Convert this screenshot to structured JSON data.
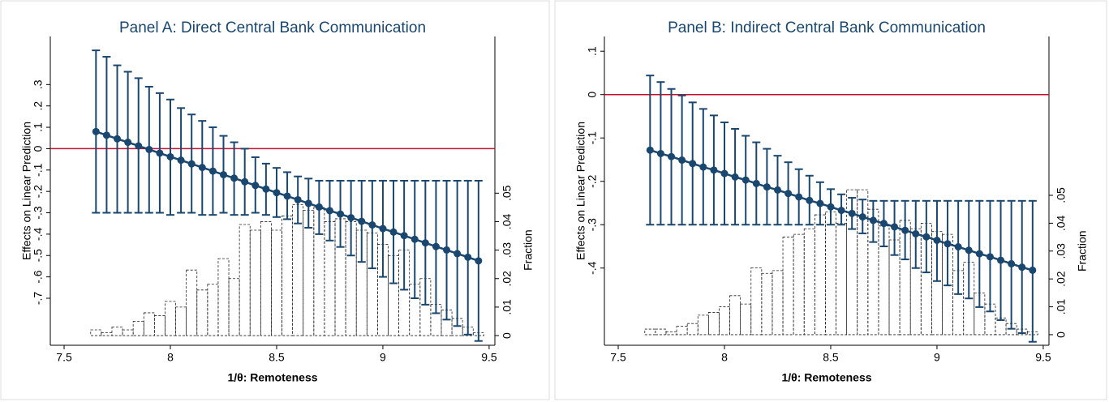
{
  "chart_data": [
    {
      "type": "coefplot",
      "title": "Panel A: Direct Central Bank Communication",
      "xlabel": "1/θ: Remoteness",
      "ylabel": "Effects on Linear Prediction",
      "y2label": "Fraction",
      "color": "#1a476f",
      "refline": 0,
      "refline_color": "#c8102e",
      "hist_color": "#222222",
      "xlim": [
        7.435,
        9.527
      ],
      "xticks": [
        7.5,
        8,
        8.5,
        9,
        9.5
      ],
      "ylim": [
        -0.92,
        0.525
      ],
      "yticks": [
        {
          "value": 0.3,
          "label": ".3"
        },
        {
          "value": 0.2,
          "label": ".2"
        },
        {
          "value": 0.1,
          "label": ".1"
        },
        0,
        {
          "value": -0.1,
          "label": "-.1"
        },
        {
          "value": -0.2,
          "label": "-.2"
        },
        {
          "value": -0.3,
          "label": "-.3"
        },
        {
          "value": -0.4,
          "label": "-.4"
        },
        {
          "value": -0.5,
          "label": "-.5"
        },
        {
          "value": -0.6,
          "label": "-.6"
        },
        {
          "value": -0.7,
          "label": "-.7"
        }
      ],
      "y2lim": [
        -0.0034,
        0.105
      ],
      "y2ticks": [
        0,
        {
          "value": 0.01,
          "label": ".01"
        },
        {
          "value": 0.02,
          "label": ".02"
        },
        {
          "value": 0.03,
          "label": ".03"
        },
        {
          "value": 0.04,
          "label": ".04"
        },
        {
          "value": 0.05,
          "label": ".05"
        }
      ],
      "x": [
        7.65,
        7.7,
        7.75,
        7.8,
        7.85,
        7.9,
        7.95,
        8,
        8.05,
        8.1,
        8.15,
        8.2,
        8.25,
        8.3,
        8.35,
        8.4,
        8.45,
        8.5,
        8.55,
        8.6,
        8.65,
        8.7,
        8.75,
        8.8,
        8.85,
        8.9,
        8.95,
        9,
        9.05,
        9.1,
        9.15,
        9.2,
        9.25,
        9.3,
        9.35,
        9.4,
        9.45
      ],
      "values": [
        0.08,
        0.063,
        0.046,
        0.03,
        0.013,
        -0.004,
        -0.021,
        -0.038,
        -0.054,
        -0.071,
        -0.088,
        -0.105,
        -0.122,
        -0.138,
        -0.155,
        -0.172,
        -0.189,
        -0.206,
        -0.222,
        -0.239,
        -0.256,
        -0.273,
        -0.29,
        -0.306,
        -0.323,
        -0.34,
        -0.357,
        -0.374,
        -0.39,
        -0.407,
        -0.424,
        -0.441,
        -0.458,
        -0.474,
        -0.491,
        -0.508,
        -0.525
      ],
      "lower": [
        -0.3,
        -0.3,
        -0.3,
        -0.3,
        -0.3,
        -0.3,
        -0.3,
        -0.31,
        -0.3,
        -0.3,
        -0.31,
        -0.31,
        -0.3,
        -0.31,
        -0.31,
        -0.3,
        -0.31,
        -0.32,
        -0.33,
        -0.35,
        -0.37,
        -0.4,
        -0.43,
        -0.46,
        -0.5,
        -0.53,
        -0.56,
        -0.6,
        -0.63,
        -0.66,
        -0.7,
        -0.73,
        -0.77,
        -0.8,
        -0.83,
        -0.87,
        -0.9
      ],
      "upper": [
        0.46,
        0.43,
        0.39,
        0.36,
        0.33,
        0.29,
        0.26,
        0.23,
        0.19,
        0.16,
        0.13,
        0.1,
        0.06,
        0.03,
        0,
        -0.04,
        -0.07,
        -0.09,
        -0.11,
        -0.13,
        -0.14,
        -0.15,
        -0.15,
        -0.15,
        -0.15,
        -0.15,
        -0.15,
        -0.15,
        -0.15,
        -0.15,
        -0.15,
        -0.15,
        -0.15,
        -0.15,
        -0.15,
        -0.15,
        -0.15
      ],
      "bins": [
        7.625,
        7.675,
        7.725,
        7.775,
        7.825,
        7.875,
        7.925,
        7.975,
        8.025,
        8.075,
        8.125,
        8.175,
        8.225,
        8.275,
        8.325,
        8.375,
        8.425,
        8.475,
        8.525,
        8.575,
        8.625,
        8.675,
        8.725,
        8.775,
        8.825,
        8.875,
        8.925,
        8.975,
        9.025,
        9.075,
        9.125,
        9.175,
        9.225,
        9.275,
        9.325,
        9.375,
        9.425,
        9.475
      ],
      "fractions": [
        0.002,
        0.001,
        0.003,
        0.002,
        0.005,
        0.008,
        0.007,
        0.012,
        0.01,
        0.023,
        0.016,
        0.018,
        0.027,
        0.02,
        0.039,
        0.037,
        0.04,
        0.037,
        0.042,
        0.046,
        0.044,
        0.045,
        0.04,
        0.041,
        0.04,
        0.037,
        0.036,
        0.032,
        0.028,
        0.03,
        0.018,
        0.02,
        0.011,
        0.009,
        0.006,
        0.003,
        0.001
      ]
    },
    {
      "type": "coefplot",
      "title": "Panel B: Indirect Central Bank Communication",
      "xlabel": "1/θ: Remoteness",
      "ylabel": "Effects on Linear Prediction",
      "y2label": "Fraction",
      "color": "#1a476f",
      "refline": 0,
      "refline_color": "#c8102e",
      "hist_color": "#222222",
      "xlim": [
        7.435,
        9.527
      ],
      "xticks": [
        7.5,
        8,
        8.5,
        9,
        9.5
      ],
      "ylim": [
        -0.578,
        0.134
      ],
      "yticks": [
        {
          "value": 0.1,
          "label": ".1"
        },
        0,
        {
          "value": -0.1,
          "label": "-.1"
        },
        {
          "value": -0.2,
          "label": "-.2"
        },
        {
          "value": -0.3,
          "label": "-.3"
        },
        {
          "value": -0.4,
          "label": "-.4"
        }
      ],
      "y2lim": [
        -0.0038,
        0.107
      ],
      "y2ticks": [
        0,
        {
          "value": 0.01,
          "label": ".01"
        },
        {
          "value": 0.02,
          "label": ".02"
        },
        {
          "value": 0.03,
          "label": ".03"
        },
        {
          "value": 0.04,
          "label": ".04"
        },
        {
          "value": 0.05,
          "label": ".05"
        }
      ],
      "x": [
        7.65,
        7.7,
        7.75,
        7.8,
        7.85,
        7.9,
        7.95,
        8,
        8.05,
        8.1,
        8.15,
        8.2,
        8.25,
        8.3,
        8.35,
        8.4,
        8.45,
        8.5,
        8.55,
        8.6,
        8.65,
        8.7,
        8.75,
        8.8,
        8.85,
        8.9,
        8.95,
        9,
        9.05,
        9.1,
        9.15,
        9.2,
        9.25,
        9.3,
        9.35,
        9.4,
        9.45
      ],
      "values": [
        -0.128,
        -0.136,
        -0.143,
        -0.151,
        -0.159,
        -0.167,
        -0.174,
        -0.182,
        -0.19,
        -0.197,
        -0.205,
        -0.213,
        -0.22,
        -0.228,
        -0.236,
        -0.244,
        -0.251,
        -0.259,
        -0.267,
        -0.274,
        -0.282,
        -0.29,
        -0.297,
        -0.305,
        -0.313,
        -0.321,
        -0.328,
        -0.336,
        -0.344,
        -0.351,
        -0.359,
        -0.367,
        -0.374,
        -0.382,
        -0.39,
        -0.398,
        -0.405
      ],
      "lower": [
        -0.3,
        -0.3,
        -0.3,
        -0.3,
        -0.3,
        -0.3,
        -0.3,
        -0.3,
        -0.3,
        -0.3,
        -0.3,
        -0.3,
        -0.3,
        -0.3,
        -0.3,
        -0.3,
        -0.3,
        -0.3,
        -0.3,
        -0.31,
        -0.32,
        -0.34,
        -0.35,
        -0.37,
        -0.38,
        -0.4,
        -0.41,
        -0.43,
        -0.44,
        -0.46,
        -0.47,
        -0.49,
        -0.5,
        -0.52,
        -0.54,
        -0.55,
        -0.57
      ],
      "upper": [
        0.044,
        0.029,
        0.013,
        -0.002,
        -0.018,
        -0.033,
        -0.048,
        -0.064,
        -0.079,
        -0.095,
        -0.11,
        -0.125,
        -0.141,
        -0.156,
        -0.172,
        -0.187,
        -0.202,
        -0.218,
        -0.23,
        -0.238,
        -0.242,
        -0.245,
        -0.245,
        -0.245,
        -0.245,
        -0.245,
        -0.245,
        -0.245,
        -0.245,
        -0.245,
        -0.245,
        -0.245,
        -0.245,
        -0.245,
        -0.245,
        -0.245,
        -0.245
      ],
      "bins": [
        7.625,
        7.675,
        7.725,
        7.775,
        7.825,
        7.875,
        7.925,
        7.975,
        8.025,
        8.075,
        8.125,
        8.175,
        8.225,
        8.275,
        8.325,
        8.375,
        8.425,
        8.475,
        8.525,
        8.575,
        8.625,
        8.675,
        8.725,
        8.775,
        8.825,
        8.875,
        8.925,
        8.975,
        9.025,
        9.075,
        9.125,
        9.175,
        9.225,
        9.275,
        9.325,
        9.375,
        9.425,
        9.475
      ],
      "fractions": [
        0.002,
        0.002,
        0.001,
        0.003,
        0.004,
        0.007,
        0.008,
        0.01,
        0.014,
        0.011,
        0.024,
        0.022,
        0.023,
        0.035,
        0.036,
        0.038,
        0.043,
        0.044,
        0.04,
        0.052,
        0.052,
        0.045,
        0.039,
        0.034,
        0.041,
        0.038,
        0.04,
        0.037,
        0.036,
        0.023,
        0.026,
        0.015,
        0.011,
        0.006,
        0.004,
        0.002,
        0.001
      ]
    }
  ]
}
